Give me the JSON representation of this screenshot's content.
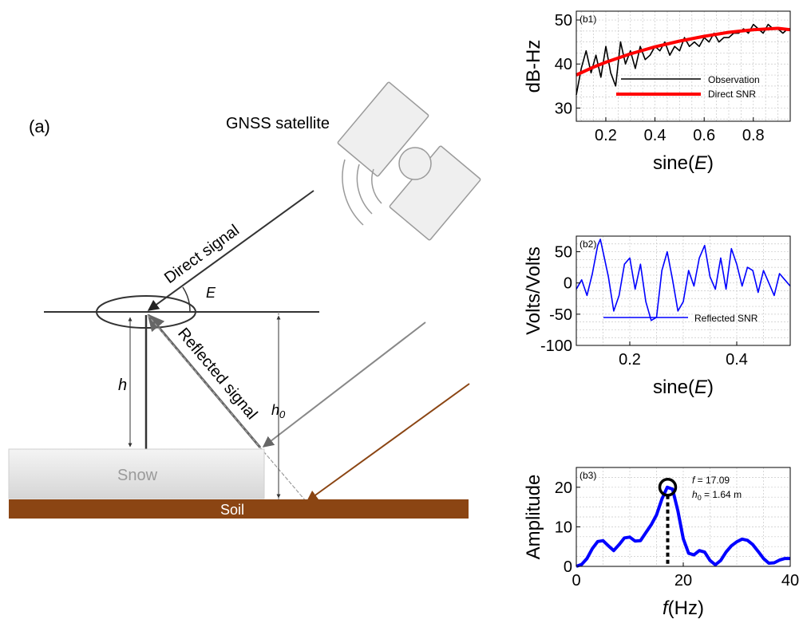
{
  "colors": {
    "soil": "#8b4513",
    "snow_top": "#f2f2f2",
    "snow_bottom": "#d8d8d8",
    "direct_snr": "#ff0000",
    "reflected": "#0000ff",
    "observation": "#000000",
    "grid": "#bfbfbf"
  },
  "diagram": {
    "panel_label": "(a)",
    "satellite_label": "GNSS satellite",
    "direct_label": "Direct signal",
    "reflected_label": "Reflected signal",
    "angle_label": "E",
    "h_label": "h",
    "h0_label": "h",
    "h0_sub": "0",
    "snow_label": "Snow",
    "soil_label": "Soil"
  },
  "chart_data": [
    {
      "id": "b1",
      "type": "line",
      "panel_label": "(b1)",
      "ylabel": "dB-Hz",
      "xlabel": "sine(",
      "xlabel_var": "E",
      "xlabel_end": ")",
      "xlim": [
        0.08,
        0.95
      ],
      "ylim": [
        27,
        52
      ],
      "xticks": [
        0.2,
        0.4,
        0.6,
        0.8
      ],
      "yticks": [
        30,
        40,
        50
      ],
      "grid": true,
      "legend_position": "bottom-right",
      "series": [
        {
          "name": "Observation",
          "color": "#000000",
          "x": [
            0.08,
            0.1,
            0.12,
            0.14,
            0.16,
            0.18,
            0.2,
            0.22,
            0.24,
            0.26,
            0.28,
            0.3,
            0.32,
            0.34,
            0.36,
            0.38,
            0.4,
            0.42,
            0.44,
            0.46,
            0.48,
            0.5,
            0.52,
            0.54,
            0.56,
            0.58,
            0.6,
            0.62,
            0.64,
            0.66,
            0.68,
            0.7,
            0.72,
            0.74,
            0.76,
            0.78,
            0.8,
            0.82,
            0.84,
            0.86,
            0.88,
            0.9,
            0.92,
            0.94
          ],
          "y": [
            33,
            39,
            43,
            38,
            42,
            37,
            44,
            38,
            35,
            45,
            40,
            43,
            39,
            44,
            41,
            42,
            44,
            43,
            45,
            42,
            44,
            43,
            46,
            44,
            45,
            44,
            46,
            45,
            47,
            45,
            46,
            46,
            47,
            47,
            48,
            47,
            49,
            48,
            47,
            49,
            48,
            48,
            47,
            48
          ]
        },
        {
          "name": "Direct SNR",
          "color": "#ff0000",
          "x": [
            0.08,
            0.15,
            0.2,
            0.3,
            0.4,
            0.5,
            0.6,
            0.7,
            0.8,
            0.9,
            0.95
          ],
          "y": [
            37.5,
            39.3,
            40.4,
            42.3,
            43.9,
            45.2,
            46.3,
            47.2,
            47.8,
            48.1,
            47.8
          ]
        }
      ]
    },
    {
      "id": "b2",
      "type": "line",
      "panel_label": "(b2)",
      "ylabel": "Volts/Volts",
      "xlabel": "sine(",
      "xlabel_var": "E",
      "xlabel_end": ")",
      "xlim": [
        0.1,
        0.5
      ],
      "ylim": [
        -100,
        75
      ],
      "xticks": [
        0.2,
        0.4
      ],
      "yticks": [
        50,
        0,
        -50,
        -100
      ],
      "grid": true,
      "legend_position": "bottom-right",
      "series": [
        {
          "name": "Reflected SNR",
          "color": "#0000ff",
          "x": [
            0.1,
            0.11,
            0.12,
            0.13,
            0.14,
            0.145,
            0.15,
            0.16,
            0.17,
            0.18,
            0.19,
            0.2,
            0.21,
            0.22,
            0.23,
            0.24,
            0.25,
            0.26,
            0.27,
            0.28,
            0.29,
            0.3,
            0.31,
            0.32,
            0.33,
            0.34,
            0.35,
            0.36,
            0.37,
            0.38,
            0.39,
            0.4,
            0.41,
            0.42,
            0.43,
            0.44,
            0.45,
            0.46,
            0.47,
            0.48,
            0.49,
            0.5
          ],
          "y": [
            -10,
            5,
            -20,
            15,
            60,
            70,
            50,
            10,
            -45,
            -20,
            30,
            40,
            -10,
            30,
            -30,
            -60,
            -55,
            20,
            50,
            5,
            -45,
            -30,
            20,
            -5,
            40,
            60,
            10,
            -10,
            40,
            -10,
            55,
            30,
            -5,
            25,
            20,
            -15,
            20,
            0,
            -20,
            15,
            5,
            -5
          ]
        }
      ]
    },
    {
      "id": "b3",
      "type": "line",
      "panel_label": "(b3)",
      "ylabel": "Amplitude",
      "xlabel": "f",
      "xlabel_end": "(Hz)",
      "xlim": [
        0,
        40
      ],
      "ylim": [
        0,
        25
      ],
      "xticks": [
        0,
        20,
        40
      ],
      "yticks": [
        0,
        10,
        20
      ],
      "grid": true,
      "peak": {
        "x": 17.09,
        "y": 20
      },
      "annotation": {
        "f_label": "f",
        "f_value": " = 17.09",
        "h_label": "h",
        "h_sub": "0",
        "h_value": " = 1.64 m"
      },
      "series": [
        {
          "name": "",
          "color": "#0000ff",
          "x": [
            0,
            1,
            2,
            3,
            4,
            5,
            6,
            7,
            8,
            9,
            10,
            11,
            12,
            13,
            14,
            15,
            16,
            17,
            18,
            19,
            20,
            21,
            22,
            23,
            24,
            25,
            26,
            27,
            28,
            29,
            30,
            31,
            32,
            33,
            34,
            35,
            36,
            37,
            38,
            39,
            40
          ],
          "y": [
            0,
            0.5,
            2,
            4.5,
            6.3,
            6.5,
            5.2,
            4,
            5.5,
            7.2,
            7.4,
            6.4,
            6.5,
            8.5,
            10.5,
            13,
            17,
            20,
            19.5,
            14,
            7,
            3.3,
            2.9,
            4,
            3.6,
            1.5,
            0.4,
            1.5,
            3.6,
            5.2,
            6.2,
            6.9,
            6.6,
            5.5,
            3.8,
            2,
            0.8,
            0.9,
            1.6,
            2,
            2
          ]
        }
      ]
    }
  ]
}
